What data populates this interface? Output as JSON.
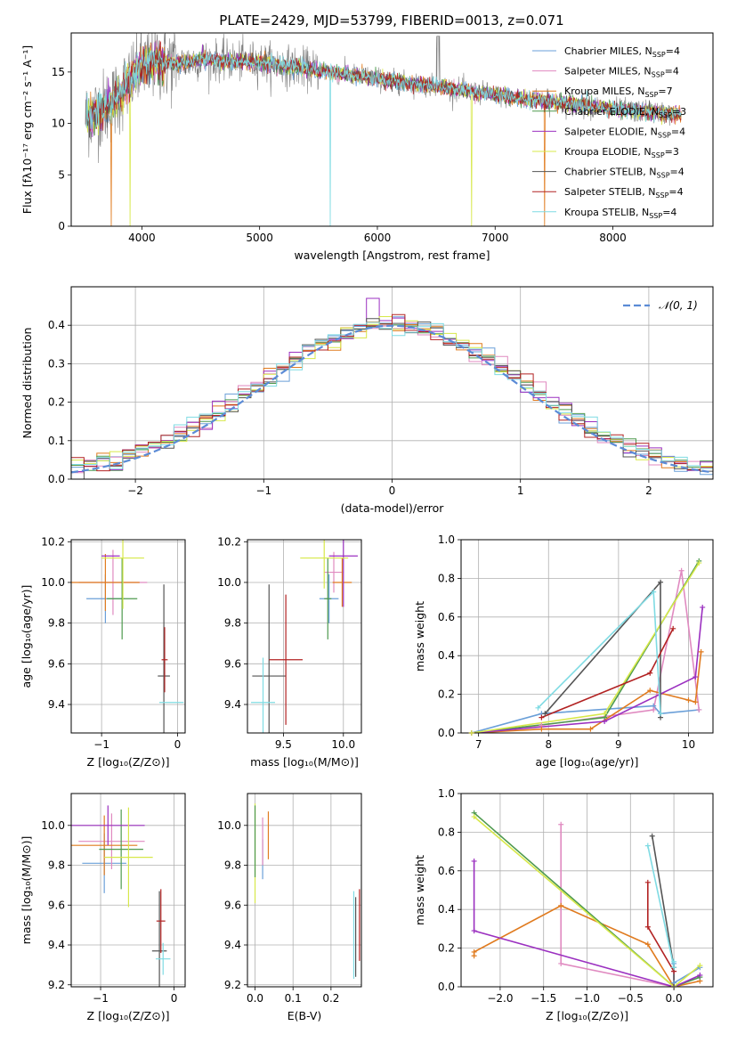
{
  "figure": {
    "title": "PLATE=2429, MJD=53799, FIBERID=0013, z=0.071"
  },
  "colors": {
    "series": [
      "#6a9fd8",
      "#e08ac0",
      "#e07b1f",
      "#4e9a4e",
      "#9b30c0",
      "#d7e84a",
      "#555555",
      "#b22222",
      "#7fdbe3"
    ],
    "spectrum_data": "#808080",
    "gauss": "#5b8bd6",
    "grid": "#b0b0b0"
  },
  "chart_data": [
    {
      "id": "spectrum",
      "type": "line",
      "title": "PLATE=2429, MJD=53799, FIBERID=0013, z=0.071",
      "xlabel": "wavelength [Angstrom, rest frame]",
      "ylabel": "Flux [fλ10⁻¹⁷ erg cm⁻² s⁻¹ A⁻¹]",
      "xlim": [
        3400,
        8850
      ],
      "ylim": [
        0,
        18.8
      ],
      "xticks": [
        4000,
        5000,
        6000,
        7000,
        8000
      ],
      "yticks": [
        0,
        5,
        10,
        15
      ],
      "grid": false,
      "legend": "top-right",
      "series": [
        {
          "name": "Chabrier MILES, N_SSP=4"
        },
        {
          "name": "Salpeter MILES, N_SSP=4"
        },
        {
          "name": "Kroupa MILES, N_SSP=7"
        },
        {
          "name": "Chabrier ELODIE, N_SSP=3"
        },
        {
          "name": "Salpeter ELODIE, N_SSP=4"
        },
        {
          "name": "Kroupa ELODIE, N_SSP=3"
        },
        {
          "name": "Chabrier STELIB, N_SSP=4"
        },
        {
          "name": "Salpeter STELIB, N_SSP=4"
        },
        {
          "name": "Kroupa STELIB, N_SSP=4"
        }
      ],
      "continuum": {
        "x": [
          3530,
          3600,
          3700,
          3800,
          3900,
          4000,
          4100,
          4300,
          4500,
          4700,
          5000,
          5300,
          5600,
          5900,
          6200,
          6500,
          6800,
          7100,
          7400,
          7700,
          8000,
          8300,
          8600
        ],
        "y": [
          10.5,
          11.0,
          11.6,
          12.6,
          14.2,
          15.5,
          16.0,
          15.8,
          16.2,
          16.1,
          16.0,
          15.5,
          15.0,
          14.5,
          14.0,
          13.6,
          13.1,
          12.6,
          12.2,
          11.8,
          11.4,
          11.1,
          10.9
        ]
      },
      "data_x_range": [
        3520,
        8510
      ],
      "model_x_range": [
        3530,
        8580
      ]
    },
    {
      "id": "residuals",
      "type": "line",
      "xlabel": "(data-model)/error",
      "ylabel": "Normed distribution",
      "xlim": [
        -2.5,
        2.5
      ],
      "ylim": [
        0,
        0.5
      ],
      "xticks": [
        -2,
        -1,
        0,
        1,
        2
      ],
      "yticks": [
        0.0,
        0.1,
        0.2,
        0.3,
        0.4
      ],
      "grid": true,
      "legend": "top-right",
      "gauss_label": "𝒩(0, 1)",
      "bin_width": 0.1
    },
    {
      "id": "age_vs_Z",
      "type": "scatter",
      "xlabel": "Z [log₁₀(Z/Z⊙)]",
      "ylabel": "age  [log₁₀(age/yr)]",
      "xlim": [
        -1.4,
        0.1
      ],
      "ylim": [
        9.26,
        10.21
      ],
      "xticks": [
        -1,
        0
      ],
      "yticks": [
        9.4,
        9.6,
        9.8,
        10.0,
        10.2
      ],
      "grid": true,
      "points": [
        {
          "x": -0.95,
          "xerr": 0.25,
          "y": 9.92,
          "yerr": 0.12
        },
        {
          "x": -0.85,
          "xerr": 0.45,
          "y": 10.0,
          "yerr": 0.16
        },
        {
          "x": -0.95,
          "xerr": 0.45,
          "y": 10.0,
          "yerr": 0.14
        },
        {
          "x": -0.73,
          "xerr": 0.2,
          "y": 9.92,
          "yerr": 0.2
        },
        {
          "x": -0.88,
          "xerr": 0.12,
          "y": 10.13,
          "yerr": 0.0
        },
        {
          "x": -0.72,
          "xerr": 0.28,
          "y": 10.12,
          "yerr": 0.25
        },
        {
          "x": -0.18,
          "xerr": 0.08,
          "y": 9.54,
          "yerr": 0.45
        },
        {
          "x": -0.17,
          "xerr": 0.04,
          "y": 9.62,
          "yerr": 0.16
        },
        {
          "x": -0.08,
          "xerr": 0.16,
          "y": 9.41,
          "yerr": 0.0
        }
      ]
    },
    {
      "id": "age_vs_mass",
      "type": "scatter",
      "xlabel": "mass [log₁₀(M/M⊙)]",
      "ylabel": "",
      "xlim": [
        9.2,
        10.15
      ],
      "ylim": [
        9.26,
        10.21
      ],
      "xticks": [
        9.5,
        10.0
      ],
      "yticks": [
        9.4,
        9.6,
        9.8,
        10.0,
        10.2
      ],
      "grid": true,
      "points": [
        {
          "x": 9.88,
          "xerr": 0.08,
          "y": 9.92,
          "yerr": 0.12
        },
        {
          "x": 9.92,
          "xerr": 0.08,
          "y": 10.05,
          "yerr": 0.1
        },
        {
          "x": 9.99,
          "xerr": 0.08,
          "y": 10.0,
          "yerr": 0.12
        },
        {
          "x": 9.87,
          "xerr": 0.03,
          "y": 9.92,
          "yerr": 0.2
        },
        {
          "x": 10.0,
          "xerr": 0.12,
          "y": 10.13,
          "yerr": 0.25
        },
        {
          "x": 9.84,
          "xerr": 0.2,
          "y": 10.12,
          "yerr": 0.15
        },
        {
          "x": 9.38,
          "xerr": 0.14,
          "y": 9.54,
          "yerr": 0.45
        },
        {
          "x": 9.52,
          "xerr": 0.14,
          "y": 9.62,
          "yerr": 0.32
        },
        {
          "x": 9.33,
          "xerr": 0.1,
          "y": 9.41,
          "yerr": 0.22
        }
      ]
    },
    {
      "id": "weight_vs_age",
      "type": "line",
      "xlabel": "age  [log₁₀(age/yr)]",
      "ylabel": "mass weight",
      "xlim": [
        6.75,
        10.35
      ],
      "ylim": [
        0,
        1.0
      ],
      "xticks": [
        7,
        8,
        9,
        10
      ],
      "yticks": [
        0.0,
        0.2,
        0.4,
        0.6,
        0.8,
        1.0
      ],
      "grid": true,
      "series": [
        {
          "x": [
            6.9,
            7.9,
            9.5,
            9.6,
            10.15
          ],
          "y": [
            0.0,
            0.1,
            0.14,
            0.1,
            0.12
          ]
        },
        {
          "x": [
            6.9,
            7.9,
            9.5,
            9.9,
            10.15
          ],
          "y": [
            0.0,
            0.04,
            0.12,
            0.84,
            0.12
          ]
        },
        {
          "x": [
            6.9,
            7.9,
            8.6,
            9.45,
            10.0,
            10.1,
            10.18
          ],
          "y": [
            0.0,
            0.02,
            0.02,
            0.22,
            0.17,
            0.16,
            0.42
          ]
        },
        {
          "x": [
            6.9,
            8.8,
            10.15
          ],
          "y": [
            0.0,
            0.08,
            0.89
          ]
        },
        {
          "x": [
            6.9,
            8.8,
            10.1,
            10.2
          ],
          "y": [
            0.0,
            0.06,
            0.29,
            0.65
          ]
        },
        {
          "x": [
            6.9,
            8.8,
            10.15
          ],
          "y": [
            0.0,
            0.1,
            0.88
          ]
        },
        {
          "x": [
            7.95,
            9.6,
            9.6
          ],
          "y": [
            0.1,
            0.78,
            0.08
          ]
        },
        {
          "x": [
            7.9,
            9.45,
            9.78
          ],
          "y": [
            0.08,
            0.31,
            0.54
          ]
        },
        {
          "x": [
            7.85,
            9.5,
            9.6
          ],
          "y": [
            0.13,
            0.73,
            0.1
          ]
        }
      ]
    },
    {
      "id": "mass_vs_Z",
      "type": "scatter",
      "xlabel": "Z [log₁₀(Z/Z⊙)]",
      "ylabel": "mass [log₁₀(M/M⊙)]",
      "xlim": [
        -1.4,
        0.15
      ],
      "ylim": [
        9.19,
        10.16
      ],
      "xticks": [
        -1,
        0
      ],
      "yticks": [
        9.2,
        9.4,
        9.6,
        9.8,
        10.0
      ],
      "grid": true,
      "points": [
        {
          "x": -0.95,
          "xerr": 0.3,
          "y": 9.81,
          "yerr": 0.15
        },
        {
          "x": -0.85,
          "xerr": 0.45,
          "y": 9.92,
          "yerr": 0.14
        },
        {
          "x": -0.95,
          "xerr": 0.45,
          "y": 9.9,
          "yerr": 0.15
        },
        {
          "x": -0.72,
          "xerr": 0.3,
          "y": 9.88,
          "yerr": 0.2
        },
        {
          "x": -0.9,
          "xerr": 0.5,
          "y": 10.0,
          "yerr": 0.1
        },
        {
          "x": -0.62,
          "xerr": 0.33,
          "y": 9.84,
          "yerr": 0.25
        },
        {
          "x": -0.2,
          "xerr": 0.1,
          "y": 9.37,
          "yerr": 0.3
        },
        {
          "x": -0.18,
          "xerr": 0.06,
          "y": 9.52,
          "yerr": 0.16
        },
        {
          "x": -0.15,
          "xerr": 0.1,
          "y": 9.33,
          "yerr": 0.08
        }
      ]
    },
    {
      "id": "mass_vs_EBV",
      "type": "scatter",
      "xlabel": "E(B-V)",
      "ylabel": "",
      "xlim": [
        -0.02,
        0.28
      ],
      "ylim": [
        9.19,
        10.16
      ],
      "xticks": [
        0.0,
        0.1,
        0.2
      ],
      "yticks": [
        9.2,
        9.4,
        9.6,
        9.8,
        10.0
      ],
      "grid": true,
      "points": [
        {
          "x": 0.0,
          "y": 9.86,
          "yerr": 0.25,
          "c": 5
        },
        {
          "x": 0.0,
          "y": 9.92,
          "yerr": 0.18,
          "c": 3
        },
        {
          "x": 0.02,
          "y": 9.83,
          "yerr": 0.1,
          "c": 0
        },
        {
          "x": 0.02,
          "y": 9.92,
          "yerr": 0.12,
          "c": 1
        },
        {
          "x": 0.035,
          "y": 9.95,
          "yerr": 0.12,
          "c": 2
        },
        {
          "x": 0.26,
          "y": 9.45,
          "yerr": 0.22,
          "c": 8
        },
        {
          "x": 0.265,
          "y": 9.44,
          "yerr": 0.2,
          "c": 6
        },
        {
          "x": 0.275,
          "y": 9.5,
          "yerr": 0.18,
          "c": 7
        }
      ]
    },
    {
      "id": "weight_vs_Z",
      "type": "line",
      "xlabel": "Z [log₁₀(Z/Z⊙)]",
      "ylabel": "mass weight",
      "xlim": [
        -2.45,
        0.45
      ],
      "ylim": [
        0,
        1.0
      ],
      "xticks": [
        -2.0,
        -1.5,
        -1.0,
        -0.5,
        0.0
      ],
      "yticks": [
        0.0,
        0.2,
        0.4,
        0.6,
        0.8,
        1.0
      ],
      "grid": true,
      "series": [
        {
          "x": [
            0.0,
            0.0,
            0.3
          ],
          "y": [
            0.12,
            0.02,
            0.1
          ]
        },
        {
          "x": [
            -1.3,
            -1.3,
            0.0,
            0.0
          ],
          "y": [
            0.84,
            0.12,
            0.0,
            0.08
          ]
        },
        {
          "x": [
            -2.3,
            -2.3,
            -1.3,
            -0.3,
            0.0,
            0.3
          ],
          "y": [
            0.16,
            0.18,
            0.42,
            0.22,
            0.0,
            0.03
          ]
        },
        {
          "x": [
            -2.3,
            0.0,
            0.3
          ],
          "y": [
            0.9,
            0.0,
            0.05
          ]
        },
        {
          "x": [
            -2.3,
            -2.3,
            0.0,
            0.3
          ],
          "y": [
            0.65,
            0.29,
            0.0,
            0.06
          ]
        },
        {
          "x": [
            -2.3,
            0.0,
            0.3
          ],
          "y": [
            0.88,
            0.0,
            0.11
          ]
        },
        {
          "x": [
            -0.25,
            0.0,
            0.0
          ],
          "y": [
            0.78,
            0.1,
            0.0
          ]
        },
        {
          "x": [
            -0.3,
            -0.3,
            0.0
          ],
          "y": [
            0.54,
            0.31,
            0.08
          ]
        },
        {
          "x": [
            -0.3,
            0.0,
            0.0
          ],
          "y": [
            0.73,
            0.1,
            0.13
          ]
        }
      ]
    }
  ]
}
